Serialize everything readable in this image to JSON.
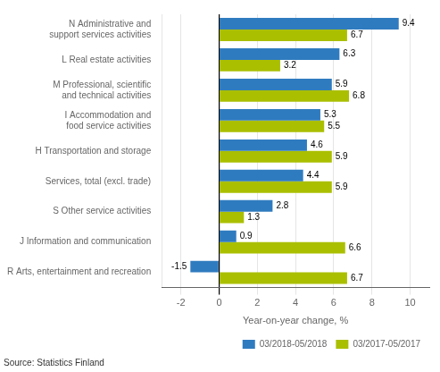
{
  "chart_data": {
    "type": "bar",
    "orientation": "horizontal",
    "categories": [
      "R Arts, entertainment and recreation",
      "J Information and communication",
      "S Other service activities",
      "Services, total (excl. trade)",
      "H Transportation and storage",
      "I Accommodation and\nfood service activities",
      "M Professional, scientific\nand technical activities",
      "L Real estate activities",
      "N Administrative and\nsupport services activities"
    ],
    "series": [
      {
        "name": "03/2018-05/2018",
        "color": "#2F7BBF",
        "values": [
          -1.5,
          0.9,
          2.8,
          4.4,
          4.6,
          5.3,
          5.9,
          6.3,
          9.4
        ]
      },
      {
        "name": "03/2017-05/2017",
        "color": "#AABF00",
        "values": [
          6.7,
          6.6,
          1.3,
          5.9,
          5.9,
          5.5,
          6.8,
          3.2,
          6.7
        ]
      }
    ],
    "xlabel": "Year-on-year change, %",
    "xlim": [
      -3,
      11
    ],
    "xticks": [
      -2,
      0,
      2,
      4,
      6,
      8,
      10
    ],
    "grid": true,
    "legend": "lower right",
    "data_labels": true,
    "annotations": [
      "Source: Statistics Finland"
    ]
  }
}
